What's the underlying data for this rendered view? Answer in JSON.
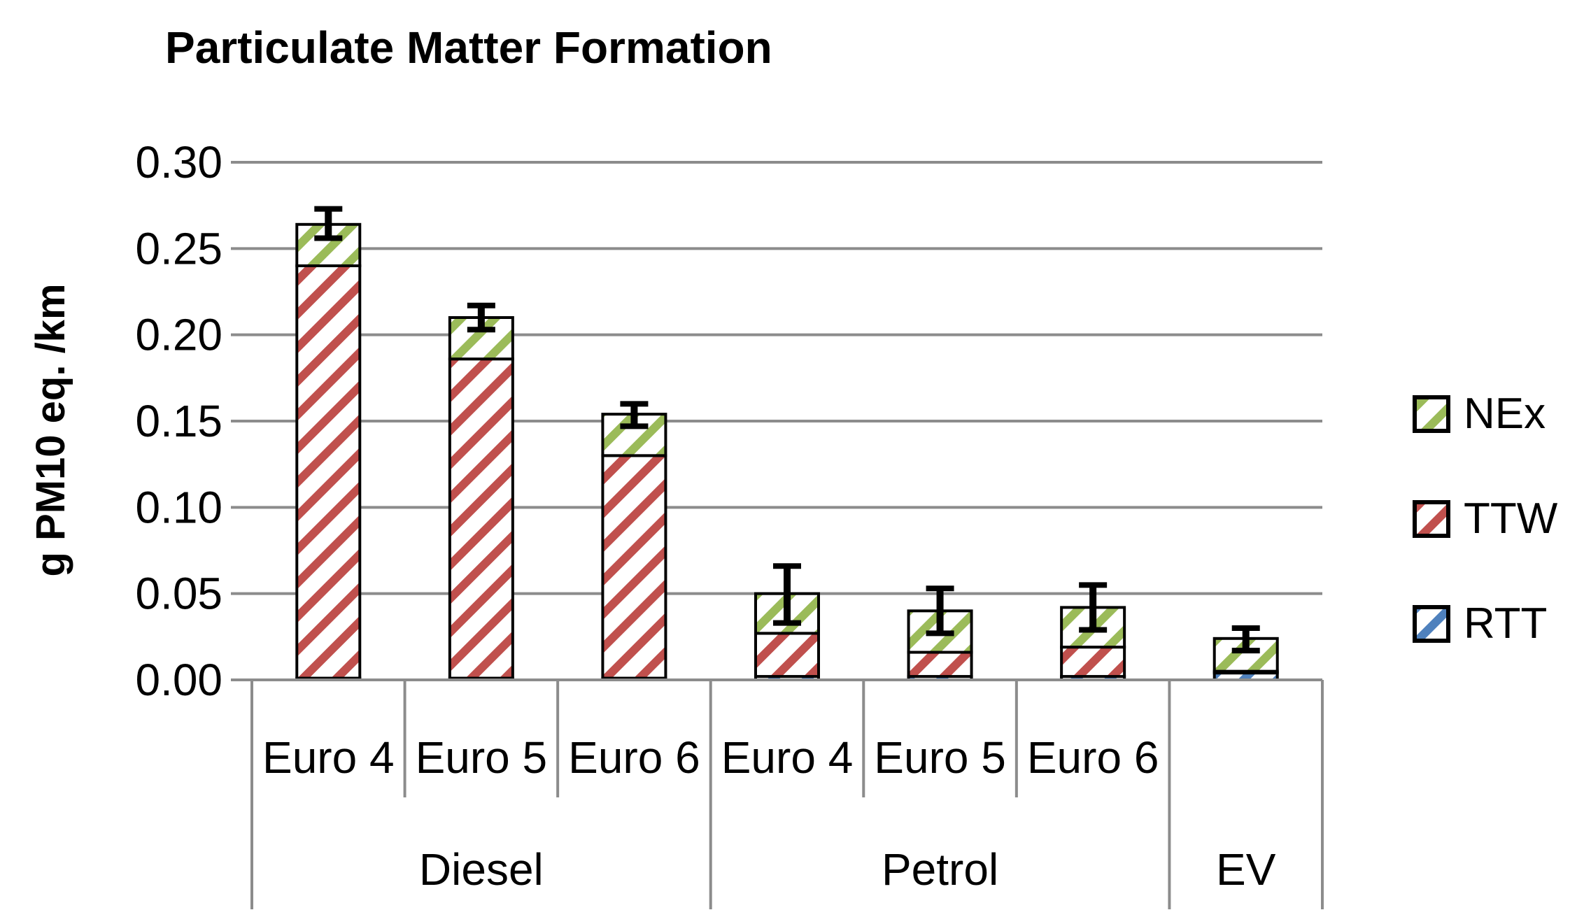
{
  "chart_data": {
    "type": "bar",
    "stacked": true,
    "title": "Particulate Matter Formation",
    "xlabel": "",
    "ylabel": "g PM10 eq. /km",
    "ylim": [
      0,
      0.3
    ],
    "yticks": [
      "0.00",
      "0.05",
      "0.10",
      "0.15",
      "0.20",
      "0.25",
      "0.30"
    ],
    "grid": true,
    "legend_position": "right",
    "categories": [
      "Euro 4",
      "Euro 5",
      "Euro 6",
      "Euro 4",
      "Euro 5",
      "Euro 6",
      ""
    ],
    "groups": [
      {
        "label": "Diesel",
        "count": 3
      },
      {
        "label": "Petrol",
        "count": 3
      },
      {
        "label": "EV",
        "count": 1
      }
    ],
    "series": [
      {
        "name": "RTT",
        "color": "#4f81bd",
        "values": [
          0.001,
          0.001,
          0.001,
          0.002,
          0.002,
          0.002,
          0.004
        ]
      },
      {
        "name": "TTW",
        "color": "#c0504d",
        "values": [
          0.239,
          0.185,
          0.129,
          0.025,
          0.014,
          0.017,
          0.001
        ]
      },
      {
        "name": "NEx",
        "color": "#9bbb59",
        "values": [
          0.024,
          0.024,
          0.024,
          0.023,
          0.024,
          0.023,
          0.019
        ]
      }
    ],
    "error_bars": [
      {
        "low": 0.256,
        "high": 0.273
      },
      {
        "low": 0.203,
        "high": 0.217
      },
      {
        "low": 0.147,
        "high": 0.16
      },
      {
        "low": 0.033,
        "high": 0.066
      },
      {
        "low": 0.027,
        "high": 0.053
      },
      {
        "low": 0.029,
        "high": 0.055
      },
      {
        "low": 0.017,
        "high": 0.03
      }
    ],
    "legend_order": [
      "NEx",
      "TTW",
      "RTT"
    ]
  }
}
